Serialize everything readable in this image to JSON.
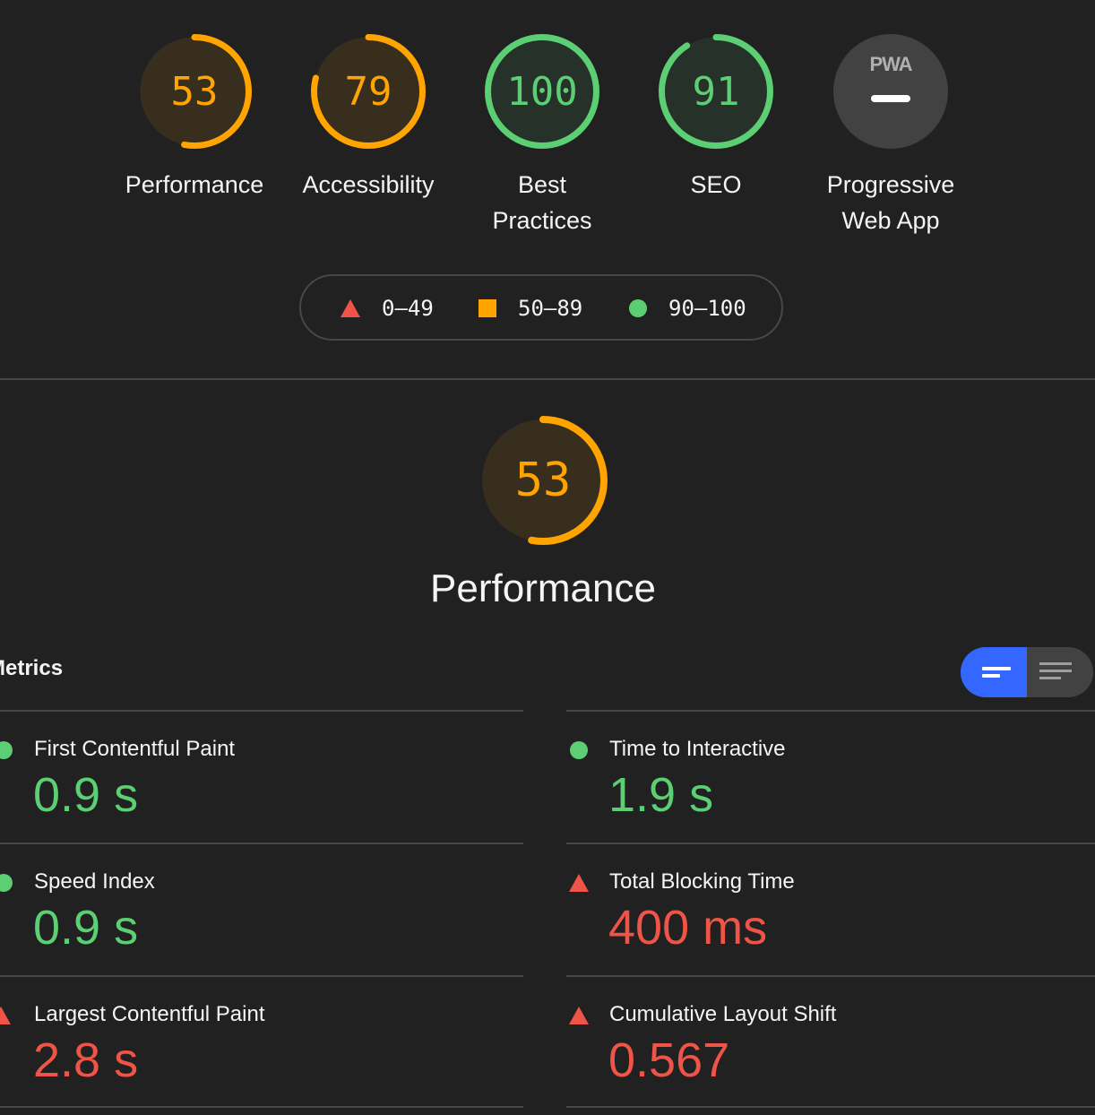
{
  "colors": {
    "pass": "#5cce73",
    "average": "#ffa400",
    "fail": "#ee5447",
    "accent": "#3367ff",
    "background": "#212121"
  },
  "categories": [
    {
      "label": "Performance",
      "score": 53,
      "status": "average"
    },
    {
      "label": "Accessibility",
      "score": 79,
      "status": "average"
    },
    {
      "label_line1": "Best",
      "label_line2": "Practices",
      "score": 100,
      "status": "pass"
    },
    {
      "label": "SEO",
      "score": 91,
      "status": "pass"
    },
    {
      "label_line1": "Progressive",
      "label_line2": "Web App",
      "badge": "PWA",
      "status": "na"
    }
  ],
  "legend": [
    {
      "icon": "triangle-fail-icon",
      "range": "0–49"
    },
    {
      "icon": "square-average-icon",
      "range": "50–89"
    },
    {
      "icon": "circle-pass-icon",
      "range": "90–100"
    }
  ],
  "section": {
    "score": 53,
    "title": "Performance",
    "metrics_label": "Metrics"
  },
  "metrics": [
    {
      "name": "First Contentful Paint",
      "value": "0.9 s",
      "status": "pass"
    },
    {
      "name": "Time to Interactive",
      "value": "1.9 s",
      "status": "pass"
    },
    {
      "name": "Speed Index",
      "value": "0.9 s",
      "status": "pass"
    },
    {
      "name": "Total Blocking Time",
      "value": "400 ms",
      "status": "fail"
    },
    {
      "name": "Largest Contentful Paint",
      "value": "2.8 s",
      "status": "fail"
    },
    {
      "name": "Cumulative Layout Shift",
      "value": "0.567",
      "status": "fail"
    }
  ]
}
